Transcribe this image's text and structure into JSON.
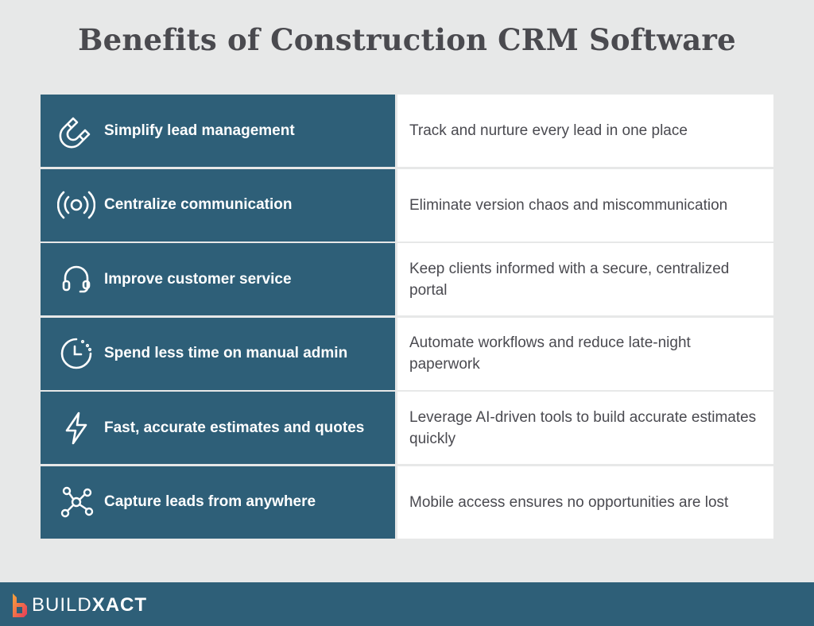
{
  "title": "Benefits of Construction CRM Software",
  "rows": [
    {
      "icon": "magnet-icon",
      "benefit": "Simplify lead management",
      "description": "Track and nurture every lead in one place"
    },
    {
      "icon": "broadcast-icon",
      "benefit": "Centralize communication",
      "description": "Eliminate version chaos and miscommunication"
    },
    {
      "icon": "headset-icon",
      "benefit": "Improve customer service",
      "description": "Keep clients informed with a secure, centralized portal"
    },
    {
      "icon": "clock-icon",
      "benefit": "Spend less time on manual admin",
      "description": "Automate workflows and reduce late-night paperwork"
    },
    {
      "icon": "lightning-icon",
      "benefit": "Fast, accurate estimates and quotes",
      "description": "Leverage AI-driven tools to build accurate estimates quickly"
    },
    {
      "icon": "network-icon",
      "benefit": "Capture leads from anywhere",
      "description": "Mobile access ensures no opportunities are lost"
    }
  ],
  "footer": {
    "logo_light": "BUILD",
    "logo_bold": "XACT"
  },
  "colors": {
    "accent": "#2e5f78",
    "background": "#e7e8e8",
    "logo_orange": "#f26b3a"
  }
}
